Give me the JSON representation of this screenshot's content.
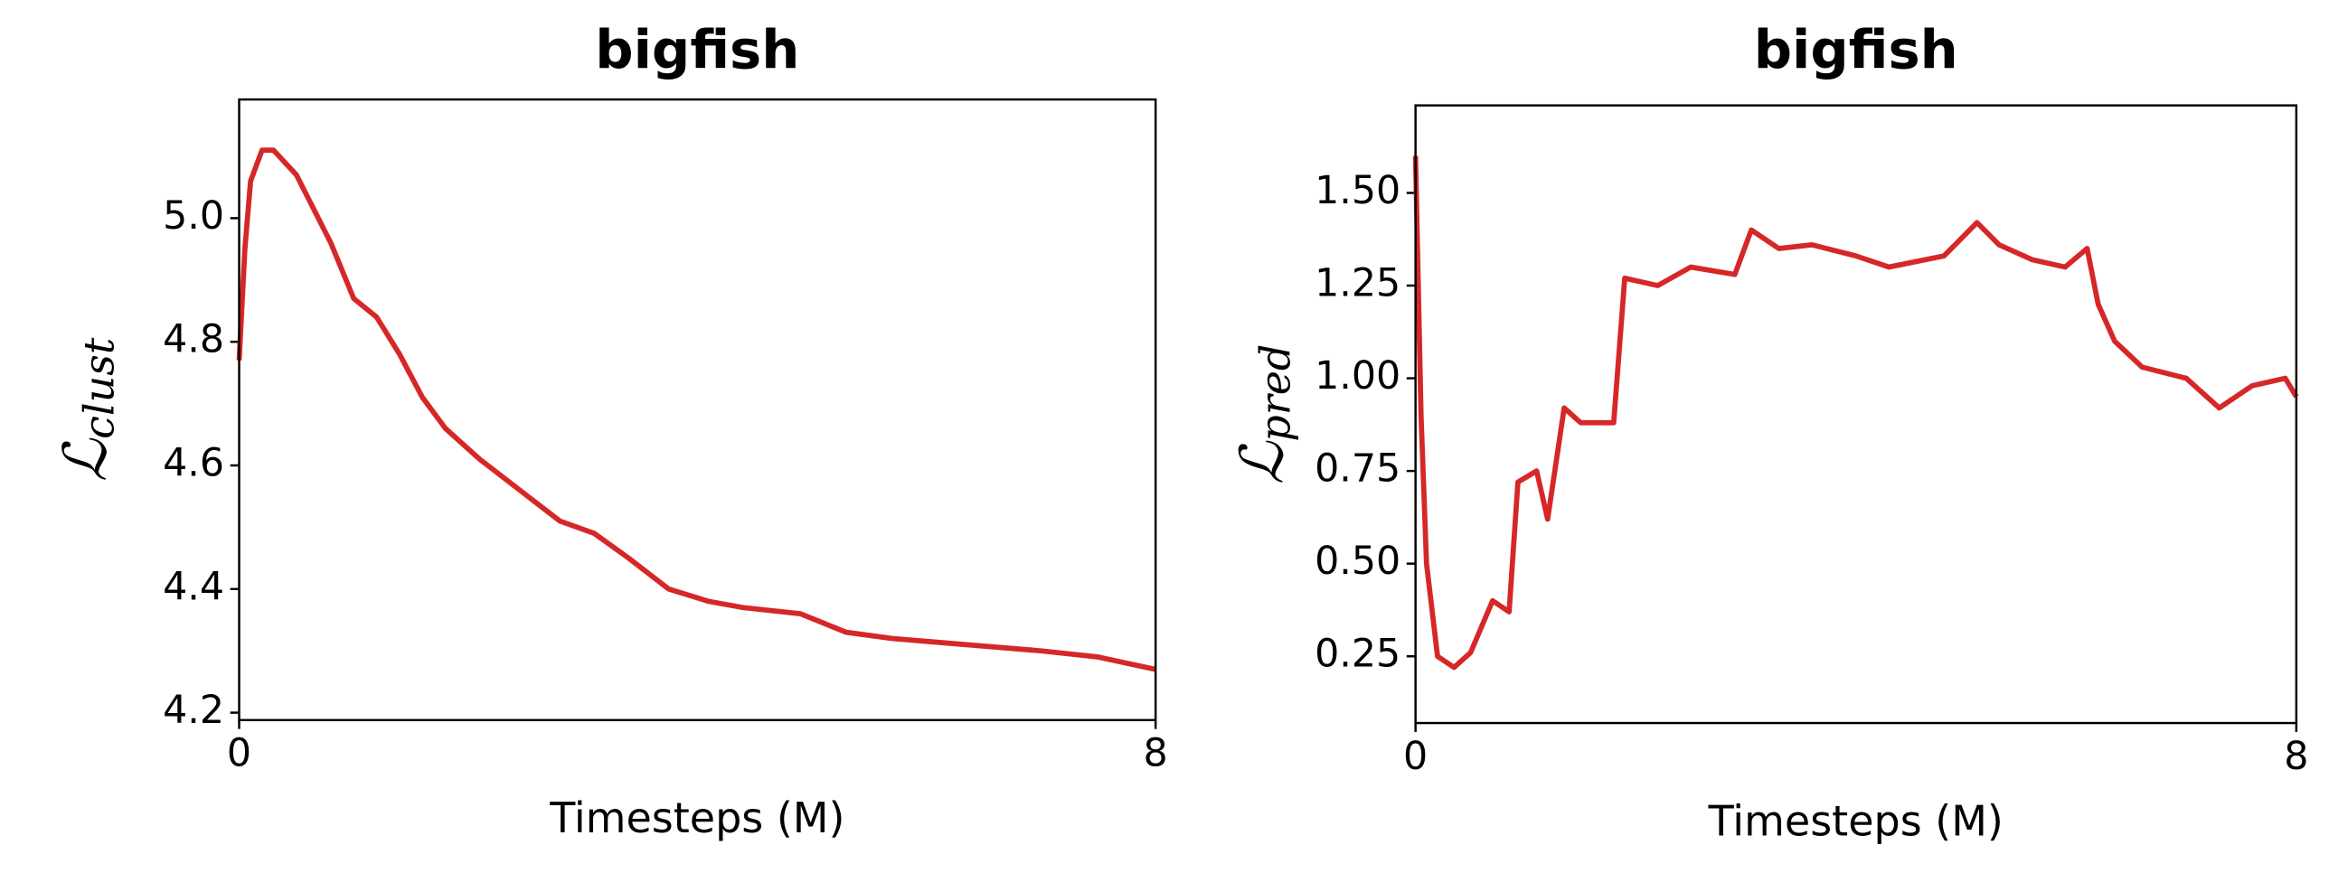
{
  "chart_data": [
    {
      "type": "line",
      "title": "bigfish",
      "xlabel": "Timesteps (M)",
      "ylabel": "ℒ",
      "ylabel_subscript": "clust",
      "xlim": [
        0,
        8
      ],
      "xticks": [
        0,
        8
      ],
      "ylim": [
        4.188,
        5.192
      ],
      "yticks": [
        4.2,
        4.4,
        4.6,
        4.8,
        {
          "value": 5,
          "label": "5.0"
        }
      ],
      "series": [
        {
          "color": "#d62728",
          "x": [
            0,
            0.05,
            0.1,
            0.2,
            0.3,
            0.5,
            0.8,
            1.0,
            1.2,
            1.4,
            1.6,
            1.8,
            2.1,
            2.45,
            2.8,
            3.1,
            3.4,
            3.75,
            4.1,
            4.4,
            4.9,
            5.3,
            5.7,
            6.35,
            7.0,
            7.5,
            8.0
          ],
          "values": [
            4.77,
            4.95,
            5.06,
            5.11,
            5.11,
            5.07,
            4.96,
            4.87,
            4.84,
            4.78,
            4.71,
            4.66,
            4.61,
            4.56,
            4.51,
            4.49,
            4.45,
            4.4,
            4.38,
            4.37,
            4.36,
            4.33,
            4.32,
            4.31,
            4.3,
            4.29,
            4.27
          ]
        }
      ]
    },
    {
      "type": "line",
      "title": "bigfish",
      "xlabel": "Timesteps (M)",
      "ylabel": "ℒ",
      "ylabel_subscript": "pred",
      "xlim": [
        0,
        8
      ],
      "xticks": [
        0,
        8
      ],
      "ylim": [
        0.07,
        1.736
      ],
      "yticks": [
        0.25,
        {
          "value": 0.5,
          "label": "0.50"
        },
        0.75,
        {
          "value": 1,
          "label": "1.00"
        },
        1.25,
        {
          "value": 1.5,
          "label": "1.50"
        }
      ],
      "series": [
        {
          "color": "#d62728",
          "x": [
            0,
            0.05,
            0.1,
            0.2,
            0.35,
            0.5,
            0.7,
            0.85,
            0.93,
            1.1,
            1.2,
            1.35,
            1.5,
            1.8,
            1.9,
            2.2,
            2.5,
            2.9,
            3.05,
            3.3,
            3.6,
            4.0,
            4.3,
            4.8,
            5.1,
            5.3,
            5.6,
            5.9,
            6.1,
            6.2,
            6.35,
            6.6,
            7.0,
            7.3,
            7.6,
            7.9,
            8.0
          ],
          "values": [
            1.6,
            0.9,
            0.5,
            0.25,
            0.22,
            0.26,
            0.4,
            0.37,
            0.72,
            0.75,
            0.62,
            0.92,
            0.88,
            0.88,
            1.27,
            1.25,
            1.3,
            1.28,
            1.4,
            1.35,
            1.36,
            1.33,
            1.3,
            1.33,
            1.42,
            1.36,
            1.32,
            1.3,
            1.35,
            1.2,
            1.1,
            1.03,
            1.0,
            0.92,
            0.98,
            1.0,
            0.95
          ]
        }
      ]
    }
  ]
}
